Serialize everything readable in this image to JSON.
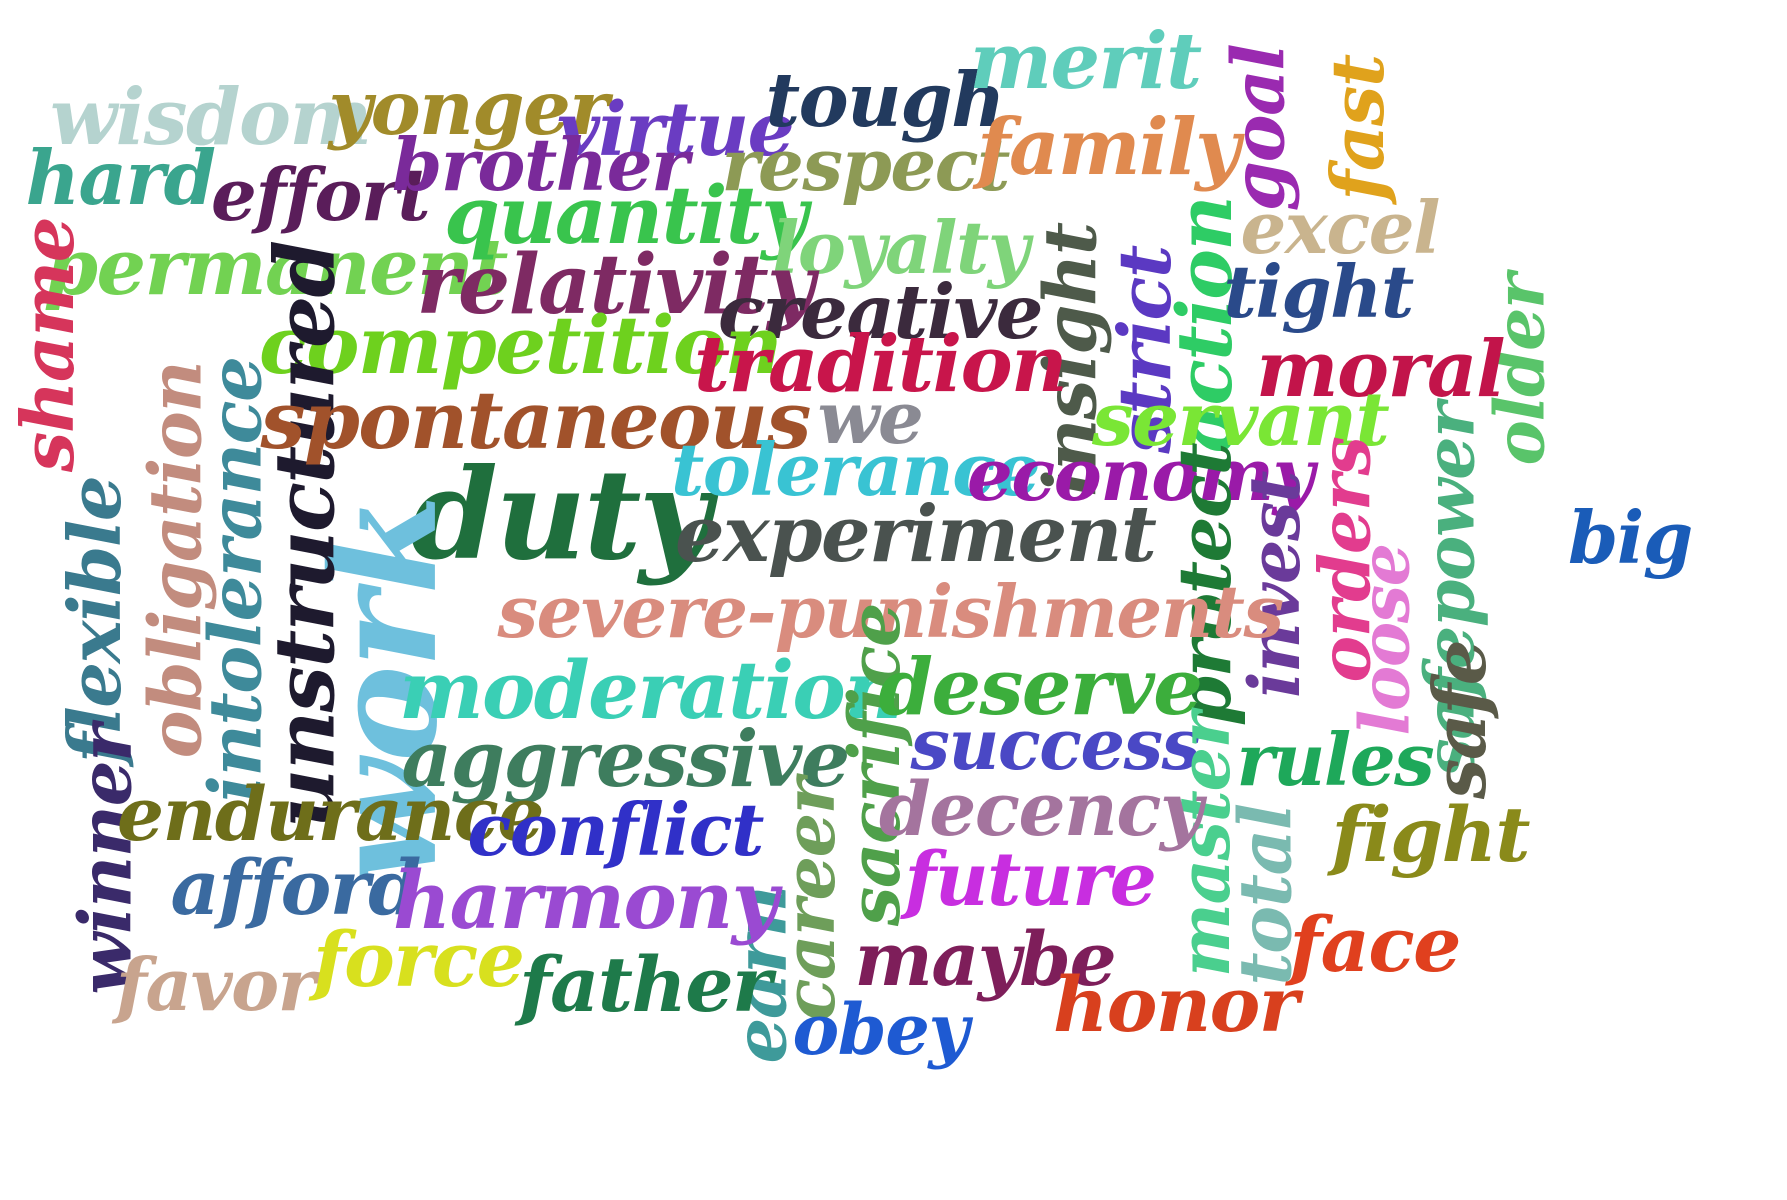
{
  "cloud": {
    "words": [
      {
        "text": "duty",
        "color": "#1f6f3d"
      },
      {
        "text": "work",
        "color": "#6ec0dd"
      },
      {
        "text": "wisdom",
        "color": "#b5d3cf"
      },
      {
        "text": "yonger",
        "color": "#a18b2a"
      },
      {
        "text": "virtue",
        "color": "#6a3cc2"
      },
      {
        "text": "tough",
        "color": "#223a5e"
      },
      {
        "text": "merit",
        "color": "#5fcdbb"
      },
      {
        "text": "goal",
        "color": "#9a2ab0"
      },
      {
        "text": "fast",
        "color": "#e0a21c"
      },
      {
        "text": "hard",
        "color": "#3aa58e"
      },
      {
        "text": "effort",
        "color": "#5a1d5a"
      },
      {
        "text": "brother",
        "color": "#7a2a9a"
      },
      {
        "text": "respect",
        "color": "#8d9a55"
      },
      {
        "text": "family",
        "color": "#e08a4f"
      },
      {
        "text": "excel",
        "color": "#c9b48e"
      },
      {
        "text": "permanent",
        "color": "#72d252"
      },
      {
        "text": "quantity",
        "color": "#39c44d"
      },
      {
        "text": "loyalty",
        "color": "#7fd47a"
      },
      {
        "text": "relativity",
        "color": "#7e2a63"
      },
      {
        "text": "creative",
        "color": "#3b2a3d"
      },
      {
        "text": "insight",
        "color": "#4e5a4a"
      },
      {
        "text": "strict",
        "color": "#5b39c2"
      },
      {
        "text": "action",
        "color": "#2ecc65"
      },
      {
        "text": "tight",
        "color": "#2a4a8a"
      },
      {
        "text": "older",
        "color": "#59c46a"
      },
      {
        "text": "shame",
        "color": "#d6355b"
      },
      {
        "text": "competition",
        "color": "#6ed11e"
      },
      {
        "text": "tradition",
        "color": "#c8154b"
      },
      {
        "text": "moral",
        "color": "#c2144a"
      },
      {
        "text": "unstructured",
        "color": "#1e1a2e"
      },
      {
        "text": "spontaneous",
        "color": "#a1522b"
      },
      {
        "text": "we",
        "color": "#8a8a93"
      },
      {
        "text": "servant",
        "color": "#7ae635"
      },
      {
        "text": "obligation",
        "color": "#c28c7e"
      },
      {
        "text": "intolerance",
        "color": "#3e8a9a"
      },
      {
        "text": "flexible",
        "color": "#3a7a8e"
      },
      {
        "text": "tolerance",
        "color": "#39c3d3"
      },
      {
        "text": "economy",
        "color": "#9a1aa8"
      },
      {
        "text": "experiment",
        "color": "#4a524f"
      },
      {
        "text": "protect",
        "color": "#1e7a35"
      },
      {
        "text": "invest",
        "color": "#6a3a9a"
      },
      {
        "text": "orders",
        "color": "#e23c8e"
      },
      {
        "text": "loose",
        "color": "#e37ad4"
      },
      {
        "text": "safepower",
        "color": "#4ab07e"
      },
      {
        "text": "big",
        "color": "#1a5cb8"
      },
      {
        "text": "severe-punishments",
        "color": "#d98c7e"
      },
      {
        "text": "moderation",
        "color": "#3acfb5"
      },
      {
        "text": "sacrifice",
        "color": "#4fa04a"
      },
      {
        "text": "deserve",
        "color": "#3cae3c"
      },
      {
        "text": "aggressive",
        "color": "#3e7d5e"
      },
      {
        "text": "success",
        "color": "#4a48c5"
      },
      {
        "text": "master",
        "color": "#4acf8e"
      },
      {
        "text": "rules",
        "color": "#1ea85a"
      },
      {
        "text": "safe",
        "color": "#5a5a48"
      },
      {
        "text": "winner",
        "color": "#3a2a6a"
      },
      {
        "text": "endurance",
        "color": "#6e6e1a"
      },
      {
        "text": "conflict",
        "color": "#3030c8"
      },
      {
        "text": "decency",
        "color": "#a4749e"
      },
      {
        "text": "fight",
        "color": "#8a8a1a"
      },
      {
        "text": "total",
        "color": "#7abab0"
      },
      {
        "text": "career",
        "color": "#6e9e5a"
      },
      {
        "text": "earn",
        "color": "#3e9a9a"
      },
      {
        "text": "afford",
        "color": "#3a6aa0"
      },
      {
        "text": "harmony",
        "color": "#9a4ad2"
      },
      {
        "text": "future",
        "color": "#c82ee0"
      },
      {
        "text": "face",
        "color": "#e0401e"
      },
      {
        "text": "favor",
        "color": "#c8a48e"
      },
      {
        "text": "force",
        "color": "#d8e01e"
      },
      {
        "text": "father",
        "color": "#1e7a4a"
      },
      {
        "text": "maybe",
        "color": "#7e1e5a"
      },
      {
        "text": "obey",
        "color": "#1e5ad2"
      },
      {
        "text": "honor",
        "color": "#d8401e"
      }
    ]
  }
}
